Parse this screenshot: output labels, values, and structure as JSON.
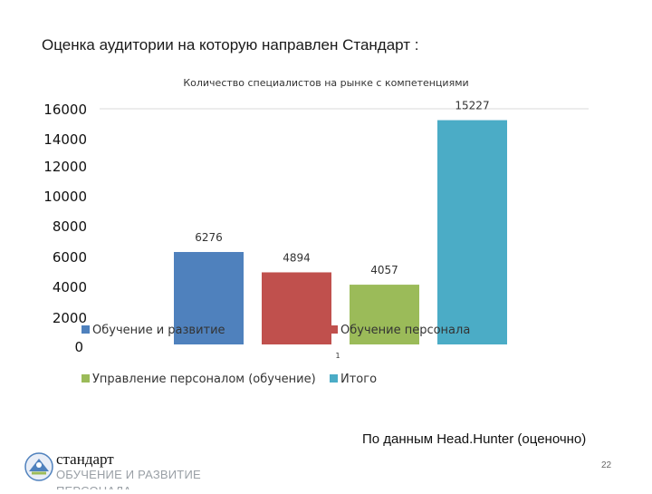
{
  "slide": {
    "title": "Оценка аудитории на которую направлен Стандарт :",
    "source_note": "По данным Head.Hunter (оценочно)",
    "page_number": "22"
  },
  "logo": {
    "word": "стандарт",
    "subtitle": "ОБУЧЕНИЕ И РАЗВИТИЕ ПЕРСОНАЛА",
    "icon": "standard-logo-icon"
  },
  "chart_data": {
    "type": "bar",
    "title": "Количество специалистов на рынке с компетенциями",
    "categories": [
      "1"
    ],
    "series": [
      {
        "name": "Обучение и развитие",
        "values": [
          6276
        ],
        "color": "#4f81bd"
      },
      {
        "name": "Обучение персонала",
        "values": [
          4894
        ],
        "color": "#c0504d"
      },
      {
        "name": "Управление персоналом (обучение)",
        "values": [
          4057
        ],
        "color": "#9bbb59"
      },
      {
        "name": "Итого",
        "values": [
          15227
        ],
        "color": "#4bacc6"
      }
    ],
    "ylim": [
      0,
      16000
    ],
    "yticks": [
      "0",
      "2000",
      "4000",
      "6000",
      "8000",
      "10000",
      "12000",
      "14000",
      "16000"
    ],
    "grid": false,
    "legend_position": "bottom",
    "show_data_labels": true
  }
}
